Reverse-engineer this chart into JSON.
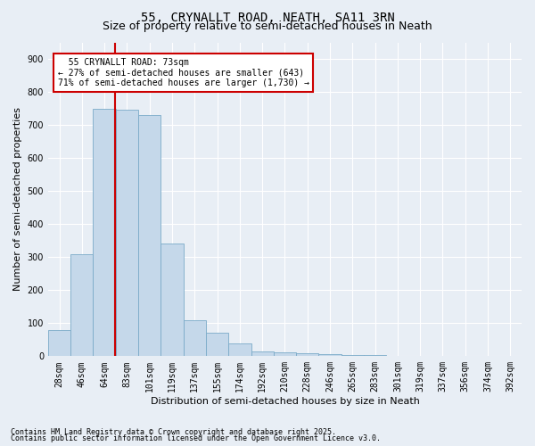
{
  "title": "55, CRYNALLT ROAD, NEATH, SA11 3RN",
  "subtitle": "Size of property relative to semi-detached houses in Neath",
  "xlabel": "Distribution of semi-detached houses by size in Neath",
  "ylabel": "Number of semi-detached properties",
  "bar_color": "#c5d8ea",
  "bar_edge_color": "#7aaac8",
  "background_color": "#e8eef5",
  "grid_color": "#ffffff",
  "categories": [
    "28sqm",
    "46sqm",
    "64sqm",
    "83sqm",
    "101sqm",
    "119sqm",
    "137sqm",
    "155sqm",
    "174sqm",
    "192sqm",
    "210sqm",
    "228sqm",
    "246sqm",
    "265sqm",
    "283sqm",
    "301sqm",
    "319sqm",
    "337sqm",
    "356sqm",
    "374sqm",
    "392sqm"
  ],
  "values": [
    80,
    310,
    750,
    745,
    730,
    340,
    110,
    70,
    40,
    15,
    12,
    10,
    7,
    4,
    3,
    2,
    1,
    1,
    1,
    0,
    0
  ],
  "property_label": "55 CRYNALLT ROAD: 73sqm",
  "pct_smaller": 27,
  "pct_larger": 71,
  "count_smaller": 643,
  "count_larger": 1730,
  "red_line_color": "#cc0000",
  "annotation_box_color": "#cc0000",
  "ylim": [
    0,
    950
  ],
  "yticks": [
    0,
    100,
    200,
    300,
    400,
    500,
    600,
    700,
    800,
    900
  ],
  "footnote1": "Contains HM Land Registry data © Crown copyright and database right 2025.",
  "footnote2": "Contains public sector information licensed under the Open Government Licence v3.0.",
  "title_fontsize": 10,
  "subtitle_fontsize": 9,
  "axis_label_fontsize": 8,
  "tick_fontsize": 7,
  "annotation_fontsize": 7,
  "footnote_fontsize": 6
}
